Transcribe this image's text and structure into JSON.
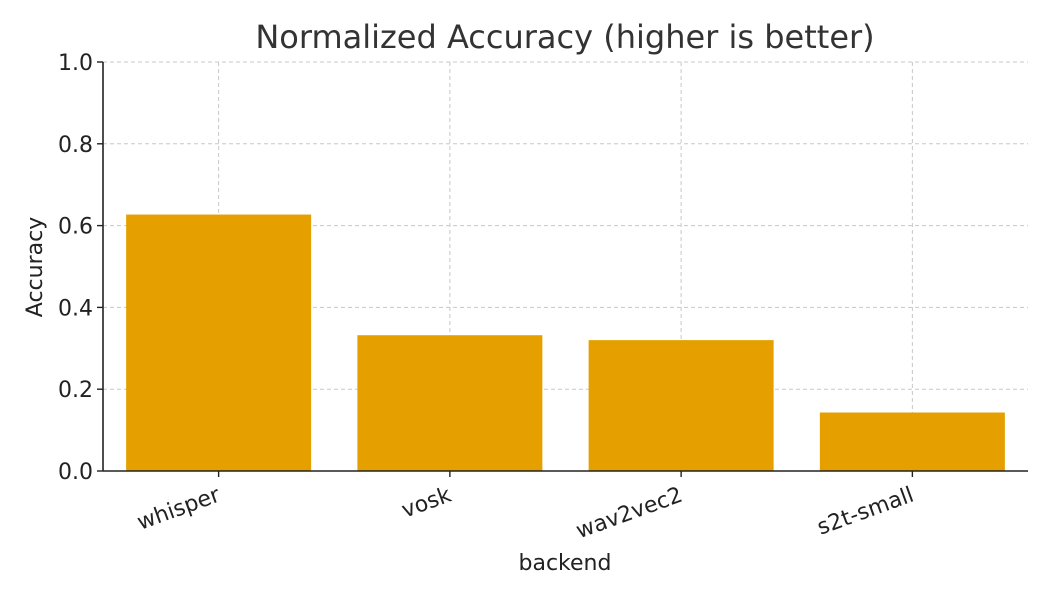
{
  "chart_data": {
    "type": "bar",
    "title": "Normalized Accuracy (higher is better)",
    "xlabel": "backend",
    "ylabel": "Accuracy",
    "categories": [
      "whisper",
      "vosk",
      "wav2vec2",
      "s2t-small"
    ],
    "values": [
      0.627,
      0.332,
      0.32,
      0.143
    ],
    "ylim": [
      0,
      1.0
    ],
    "yticks": [
      "0.0",
      "0.2",
      "0.4",
      "0.6",
      "0.8",
      "1.0"
    ],
    "ytick_values": [
      0,
      0.2,
      0.4,
      0.6,
      0.8,
      1.0
    ],
    "bar_color": "#E5A000",
    "grid": true,
    "legend": false
  }
}
